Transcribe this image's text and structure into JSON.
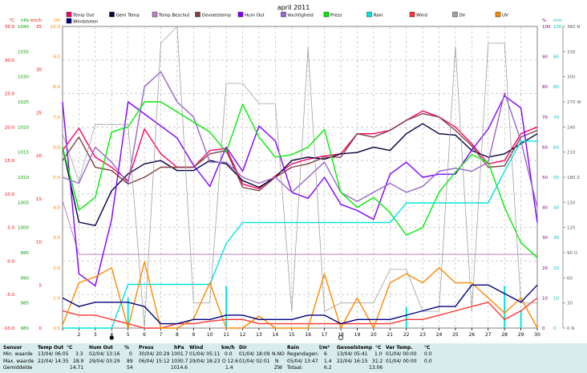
{
  "chart_data": {
    "type": "line",
    "title": "april 2011",
    "x": [
      1,
      2,
      3,
      4,
      5,
      6,
      7,
      8,
      9,
      10,
      11,
      12,
      13,
      14,
      15,
      16,
      17,
      18,
      19,
      20,
      21,
      22,
      23,
      24,
      25,
      26,
      27,
      28,
      29,
      30
    ],
    "xlim": [
      1,
      30
    ],
    "axes": {
      "temp": {
        "unit": "°C",
        "range": [
          -10,
          35
        ],
        "ticks": [
          "-10.0",
          "-5.0",
          "0.0",
          "5.0",
          "10.0",
          "15.0",
          "20.0",
          "25.0",
          "30.0",
          "35.0"
        ],
        "color": "#ff0000"
      },
      "pressure": {
        "unit": "hPa",
        "range": [
          980,
          1040
        ],
        "ticks": [
          "980",
          "985",
          "990",
          "995",
          "1000",
          "1005",
          "1010",
          "1015",
          "1020",
          "1025",
          "1030",
          "1035",
          "1040"
        ],
        "color": "#00a000"
      },
      "wind": {
        "unit": "km/h",
        "range": [
          0,
          35
        ],
        "ticks": [
          "0",
          "5",
          "10",
          "15",
          "20",
          "25",
          "30",
          "35"
        ],
        "color": "#ff0000"
      },
      "uv": {
        "unit": "UV",
        "range": [
          0,
          10
        ],
        "ticks": [
          "0.0",
          "1.0",
          "2.0",
          "3.0",
          "4.0",
          "5.0",
          "6.0",
          "7.0",
          "8.0",
          "9.0",
          "10.0"
        ],
        "color": "#ff8000"
      },
      "humidity": {
        "unit": "%",
        "range": [
          0,
          100
        ],
        "ticks": [
          "0",
          "10",
          "20",
          "30",
          "40",
          "50",
          "60",
          "70",
          "80",
          "90",
          "100"
        ],
        "color": "#800080"
      },
      "rain": {
        "unit": "mm",
        "range": [
          0,
          100
        ],
        "ticks": [
          "0",
          "10",
          "20",
          "30",
          "40",
          "50",
          "60",
          "70",
          "80",
          "90",
          "100"
        ],
        "color": "#00c0c0"
      },
      "direction": {
        "range": [
          0,
          360
        ],
        "ticks": [
          "0 N",
          "30",
          "60",
          "90 O",
          "120",
          "150",
          "180 Z",
          "210",
          "240",
          "270 W",
          "300",
          "330",
          "360 N"
        ],
        "color": "#808080"
      }
    },
    "series": [
      {
        "name": "Temp Out",
        "color": "#ff0066",
        "axis": "temp",
        "values": [
          16.5,
          19.8,
          15.5,
          14,
          12,
          19.7,
          16,
          14,
          14,
          16.5,
          16.8,
          11.5,
          10.8,
          12.7,
          14.5,
          15.2,
          15.7,
          16,
          19,
          19,
          19.5,
          21,
          22.4,
          21.5,
          20,
          17.5,
          14.5,
          15,
          19,
          20
        ]
      },
      {
        "name": "Gem Temp",
        "color": "#000040",
        "axis": "temp",
        "values": [
          17,
          5.8,
          5.3,
          10.5,
          13,
          14.5,
          15,
          13.5,
          13.5,
          15,
          14.5,
          12,
          11,
          12.5,
          15,
          15.5,
          15.2,
          16,
          16.2,
          17,
          16.5,
          19,
          20.5,
          19,
          18.8,
          16.5,
          15.5,
          16,
          17.5,
          19
        ]
      },
      {
        "name": "Temp Beschut",
        "color": "#c080c0",
        "axis": "temp",
        "values": [
          9,
          1,
          1,
          1,
          1,
          1,
          1,
          1,
          1,
          1,
          1,
          1,
          1,
          1,
          1,
          1,
          1,
          1,
          1,
          1,
          1,
          1,
          1,
          1,
          1,
          1,
          1,
          1,
          1,
          1
        ]
      },
      {
        "name": "Gevoelstemp",
        "color": "#804040",
        "axis": "temp",
        "values": [
          15,
          18.5,
          14,
          13.5,
          11.5,
          12.5,
          14,
          14,
          14,
          16,
          16.5,
          11,
          10.5,
          12.5,
          14,
          14.5,
          15.5,
          15.5,
          19,
          18.5,
          19.5,
          21,
          22,
          21.5,
          19.5,
          17.2,
          14,
          14.2,
          18.5,
          19.5
        ]
      },
      {
        "name": "Hum Out",
        "color": "#8000ff",
        "axis": "humidity",
        "values": [
          75,
          18,
          14,
          36,
          75,
          71,
          67,
          63,
          54,
          47,
          60,
          52,
          67,
          62,
          45,
          43,
          50,
          41,
          39,
          36,
          51,
          55,
          50,
          51,
          51,
          59,
          66,
          77,
          73,
          35
        ]
      },
      {
        "name": "Vochtigheid",
        "color": "#9966cc",
        "axis": "humidity",
        "values": [
          50,
          48,
          60,
          55,
          48,
          80,
          85,
          75,
          70,
          55,
          55,
          50,
          48,
          50,
          45,
          50,
          55,
          45,
          42,
          45,
          48,
          45,
          47,
          52,
          53,
          52,
          55,
          78,
          62,
          40
        ]
      },
      {
        "name": "Press",
        "color": "#00ee00",
        "axis": "pressure",
        "values": [
          1016,
          1003.5,
          1006,
          1019,
          1020,
          1025,
          1025,
          1023,
          1021,
          1019,
          1015,
          1024.5,
          1018,
          1014,
          1014.5,
          1016,
          1019.5,
          1007,
          1004,
          1006,
          1003,
          998.5,
          1000,
          1007,
          1011,
          1014.5,
          1013,
          1004,
          997,
          994
        ]
      },
      {
        "name": "Rain",
        "color": "#00e5e5",
        "axis": "rain",
        "values": [
          0,
          0,
          0,
          0,
          14.5,
          14.5,
          14.5,
          14.5,
          14.5,
          14.5,
          28,
          35,
          35,
          35,
          35,
          35,
          35,
          35,
          35,
          35,
          35,
          41.5,
          41.5,
          41.5,
          41.5,
          41.5,
          41.5,
          52,
          62,
          62
        ]
      },
      {
        "name": "Wind",
        "color": "#ff3333",
        "axis": "wind",
        "values": [
          2,
          1.5,
          1.5,
          1,
          0.5,
          0,
          0,
          0.5,
          0.5,
          0.8,
          1,
          1,
          0.5,
          0.5,
          0.5,
          0.5,
          0.5,
          0.5,
          0.5,
          0.5,
          0.5,
          1,
          1,
          1.5,
          2,
          2.5,
          3,
          1,
          2,
          3.5
        ]
      },
      {
        "name": "Dir",
        "color": "#a0a0a0",
        "axis": "direction",
        "values": [
          232,
          175,
          243,
          243,
          243,
          0,
          340,
          360,
          30,
          30,
          292,
          292,
          268,
          268,
          20,
          335,
          20,
          30,
          30,
          30,
          70,
          70,
          20,
          20,
          336,
          20,
          340,
          340,
          30,
          30
        ]
      },
      {
        "name": "UV",
        "color": "#ff8800",
        "axis": "uv",
        "values": [
          0.1,
          1.5,
          1.7,
          2,
          0,
          2.2,
          0,
          0,
          0.3,
          1.5,
          0,
          0,
          0.4,
          0,
          0,
          0,
          1.8,
          0,
          1,
          0,
          1.5,
          1.8,
          1.5,
          2,
          1.5,
          1.5,
          1,
          0.5,
          1,
          0
        ]
      },
      {
        "name": "Windstoten",
        "color": "#000080",
        "axis": "wind",
        "values": [
          3.5,
          2.5,
          3,
          3,
          3,
          2.5,
          0.5,
          0.5,
          1,
          1,
          1.5,
          1.5,
          1,
          1,
          1,
          1.5,
          1.5,
          0.5,
          1,
          1,
          1,
          1.5,
          2,
          2.5,
          2.5,
          5,
          5,
          4,
          3,
          5
        ]
      }
    ],
    "legend": [
      {
        "label": "Temp Out",
        "color": "#ff0066"
      },
      {
        "label": "Gem Temp",
        "color": "#000040"
      },
      {
        "label": "Temp Beschut",
        "color": "#c080c0"
      },
      {
        "label": "Gevoelstemp",
        "color": "#804040"
      },
      {
        "label": "Hum Out",
        "color": "#8000ff"
      },
      {
        "label": "Vochtigheid",
        "color": "#9966cc"
      },
      {
        "label": "Press",
        "color": "#00ee00"
      },
      {
        "label": "Rain",
        "color": "#00e5e5"
      },
      {
        "label": "Wind",
        "color": "#ff3333"
      },
      {
        "label": "Dir",
        "color": "#a0a0a0"
      },
      {
        "label": "UV",
        "color": "#ff8800"
      },
      {
        "label": "Windstoten",
        "color": "#000080"
      }
    ],
    "rain_bars": [
      {
        "day": 5,
        "value": 10
      },
      {
        "day": 11,
        "value": 14
      },
      {
        "day": 22,
        "value": 7
      },
      {
        "day": 28,
        "value": 14
      },
      {
        "day": 29,
        "value": 6
      }
    ],
    "moon_phases": [
      {
        "day": 4,
        "phase": "full"
      },
      {
        "day": 18,
        "phase": "new"
      }
    ],
    "grid": true,
    "legend_placement": "top"
  },
  "footer": {
    "labels": [
      "Sensor",
      "Min. waarde",
      "Max. waarde",
      "Gemiddelde"
    ],
    "temp_out": {
      "header": "Temp Out",
      "unit": "°C",
      "min": [
        "13/04/",
        "06:05",
        "3.3"
      ],
      "max": [
        "22/04/",
        "14:35",
        "28.9"
      ],
      "avg": "14.71"
    },
    "hum_out": {
      "header": "Hum Out",
      "unit": "%",
      "min": [
        "02/04/",
        "13:16",
        "0"
      ],
      "max": [
        "29/04/",
        "03:29",
        "89"
      ],
      "avg": "54"
    },
    "press": {
      "header": "Press",
      "unit": "hPa",
      "min": [
        "30/04/",
        "20:29",
        "1001.7"
      ],
      "max": [
        "06/04/",
        "15:12",
        "1030.7"
      ],
      "avg": "1014.6"
    },
    "wind": {
      "header": "Wind",
      "unit": "km/h",
      "min": [
        "01/04/",
        "05:11",
        "0.0"
      ],
      "max": [
        "29/04/",
        "18:23",
        "O 12.6"
      ],
      "avg": "1.4"
    },
    "dir": {
      "header": "Dir",
      "min": [
        "01/04/",
        "18:09",
        "N-NO"
      ],
      "max": [
        "01/04/",
        "02:01",
        "N"
      ],
      "avg": "ZW"
    },
    "rain": {
      "header": "Rain",
      "unit": "l/m²",
      "row1": [
        "Regendagen:",
        "6"
      ],
      "row2": [
        "05/04/",
        "13:47",
        "1.4"
      ],
      "row3": [
        "Totaal:",
        "6.2"
      ]
    },
    "gevoel": {
      "header": "Gevoelstemp",
      "unit": "°C",
      "min": [
        "13/04/",
        "05:41",
        "1.0"
      ],
      "max": [
        "22/04/",
        "16:15",
        "31.2"
      ],
      "avg": "13.06"
    },
    "ver": {
      "header": "Ver Temp.",
      "unit": "°C",
      "min": [
        "01/04/",
        "00:00",
        "0.0"
      ],
      "max": [
        "01/04/",
        "00:00",
        "0.0"
      ]
    }
  }
}
